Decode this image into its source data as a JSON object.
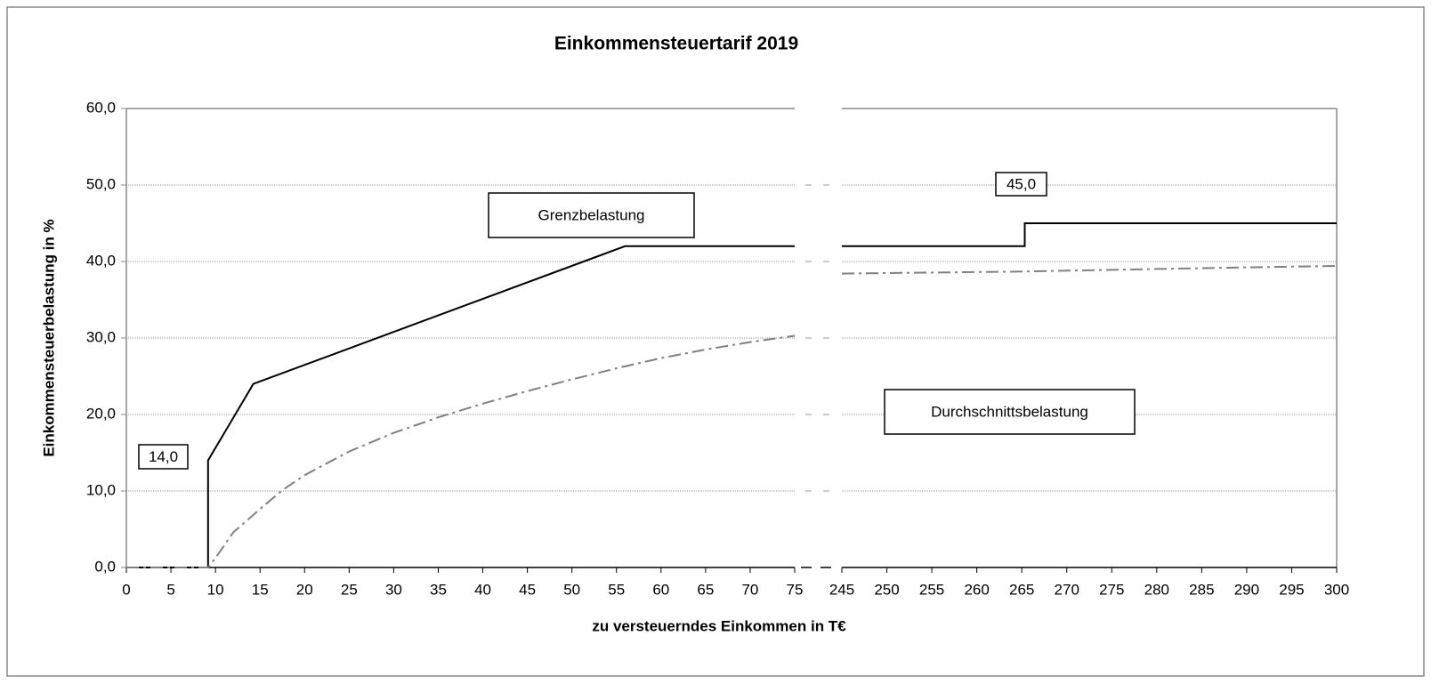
{
  "chart_data": {
    "type": "line",
    "title": "Einkommensteuertarif 2019",
    "xlabel": "zu versteuerndes Einkommen in T€",
    "ylabel": "Einkommensteuerbelastung in %",
    "x_segments": [
      {
        "xlim": [
          0,
          75
        ],
        "xticks": [
          0,
          5,
          10,
          15,
          20,
          25,
          30,
          35,
          40,
          45,
          50,
          55,
          60,
          65,
          70,
          75
        ]
      },
      {
        "xlim": [
          245,
          300
        ],
        "xticks": [
          245,
          250,
          255,
          260,
          265,
          270,
          275,
          280,
          285,
          290,
          295,
          300
        ]
      }
    ],
    "ylim": [
      0,
      60
    ],
    "yticks": [
      {
        "value": 0,
        "label": "0,0"
      },
      {
        "value": 10,
        "label": "10,0"
      },
      {
        "value": 20,
        "label": "20,0"
      },
      {
        "value": 30,
        "label": "30,0"
      },
      {
        "value": 40,
        "label": "40,0"
      },
      {
        "value": 50,
        "label": "50,0"
      },
      {
        "value": 60,
        "label": "60,0"
      }
    ],
    "grid": true,
    "series": [
      {
        "name": "Grenzbelastung",
        "color": "#000000",
        "style": "solid",
        "x": [
          0,
          9.168,
          9.168,
          14.254,
          55.96,
          75,
          245,
          265.326,
          265.326,
          300
        ],
        "values": [
          0,
          0,
          14,
          24,
          42,
          42,
          42,
          42,
          45,
          45
        ]
      },
      {
        "name": "Durchschnittsbelastung",
        "color": "#808080",
        "style": "dashdot",
        "x": [
          0,
          9.168,
          10,
          12,
          15,
          17.5,
          20,
          25,
          30,
          35,
          40,
          45,
          50,
          55,
          60,
          65,
          70,
          75,
          245,
          250,
          265,
          270,
          280,
          290,
          300
        ],
        "values": [
          0,
          0,
          1.23,
          4.6,
          7.64,
          10.1,
          12.07,
          15.16,
          17.59,
          19.63,
          21.42,
          23.06,
          24.59,
          26.04,
          27.37,
          28.49,
          29.46,
          30.29,
          38.42,
          38.49,
          38.69,
          38.8,
          39.02,
          39.23,
          39.42
        ]
      }
    ],
    "annotations": [
      {
        "text": "14,0"
      },
      {
        "text": "45,0"
      },
      {
        "text": "Grenzbelastung"
      },
      {
        "text": "Durchschnittsbelastung"
      }
    ]
  }
}
